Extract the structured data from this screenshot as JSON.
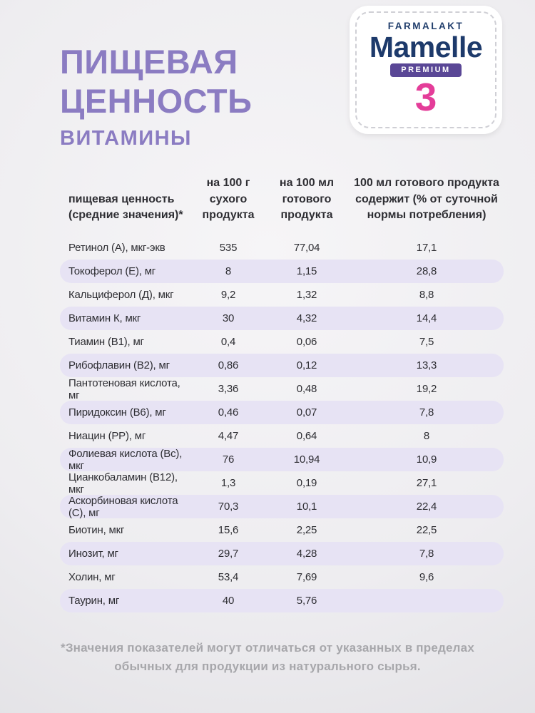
{
  "header": {
    "title_line1": "ПИЩЕВАЯ",
    "title_line2": "ЦЕННОСТЬ",
    "subtitle": "ВИТАМИНЫ"
  },
  "brand": {
    "manufacturer": "FARMALAKT",
    "logo_text": "Mamelle",
    "premium_label": "PREMIUM",
    "stage_number": "3",
    "colors": {
      "navy": "#1d3a6b",
      "premium_purple": "#5a4796",
      "stage_pink": "#e43d99"
    }
  },
  "table": {
    "headers": [
      "пищевая ценность (средние значения)*",
      "на 100 г сухого продукта",
      "на 100 мл готового продукта",
      "100 мл готового продукта содержит (% от суточной нормы потребления)"
    ],
    "rows": [
      [
        "Ретинол (А), мкг-экв",
        "535",
        "77,04",
        "17,1"
      ],
      [
        "Токоферол (Е), мг",
        "8",
        "1,15",
        "28,8"
      ],
      [
        "Кальциферол (Д), мкг",
        "9,2",
        "1,32",
        "8,8"
      ],
      [
        "Витамин К, мкг",
        "30",
        "4,32",
        "14,4"
      ],
      [
        "Тиамин (В1), мг",
        "0,4",
        "0,06",
        "7,5"
      ],
      [
        "Рибофлавин (В2), мг",
        "0,86",
        "0,12",
        "13,3"
      ],
      [
        "Пантотеновая кислота, мг",
        "3,36",
        "0,48",
        "19,2"
      ],
      [
        "Пиридоксин (В6), мг",
        "0,46",
        "0,07",
        "7,8"
      ],
      [
        "Ниацин (РР), мг",
        "4,47",
        "0,64",
        "8"
      ],
      [
        "Фолиевая кислота (Вс), мкг",
        "76",
        "10,94",
        "10,9"
      ],
      [
        "Цианкобаламин (В12), мкг",
        "1,3",
        "0,19",
        "27,1"
      ],
      [
        "Аскорбиновая кислота (С), мг",
        "70,3",
        "10,1",
        "22,4"
      ],
      [
        "Биотин, мкг",
        "15,6",
        "2,25",
        "22,5"
      ],
      [
        "Инозит, мг",
        "29,7",
        "4,28",
        "7,8"
      ],
      [
        "Холин, мг",
        "53,4",
        "7,69",
        "9,6"
      ],
      [
        "Таурин, мг",
        "40",
        "5,76",
        ""
      ]
    ]
  },
  "footnote": "*Значения показателей могут отличаться от указанных в пределах обычных для продукции из натурального сырья.",
  "colors": {
    "title_purple": "#8b7cc2",
    "row_alt_lavender": "#e7e3f4",
    "footnote_gray": "#a7a7ab",
    "background_gray": "#eeedf0"
  }
}
